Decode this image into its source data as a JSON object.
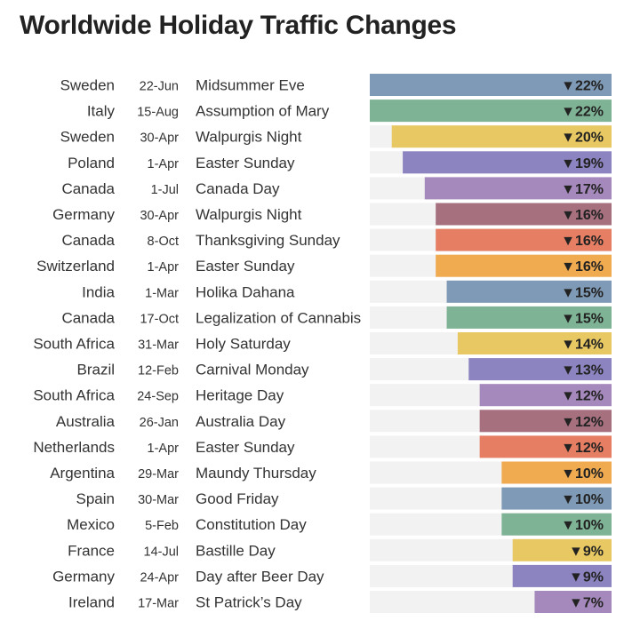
{
  "chart_data": {
    "type": "bar",
    "orientation": "horizontal",
    "title": "Worldwide Holiday Traffic Changes",
    "value_unit": "%",
    "value_direction": "decrease",
    "value_prefix": "▼",
    "xlim": [
      0,
      22
    ],
    "colors": [
      "#7f9ab6",
      "#7fb395",
      "#e8c862",
      "#8c84c0",
      "#a689bc",
      "#a6707f",
      "#e57e62",
      "#f0aa50"
    ],
    "rows": [
      {
        "country": "Sweden",
        "date": "22-Jun",
        "holiday": "Midsummer Eve",
        "value": 22,
        "color": "#7f9ab6"
      },
      {
        "country": "Italy",
        "date": "15-Aug",
        "holiday": "Assumption of Mary",
        "value": 22,
        "color": "#7fb395"
      },
      {
        "country": "Sweden",
        "date": "30-Apr",
        "holiday": "Walpurgis Night",
        "value": 20,
        "color": "#e8c862"
      },
      {
        "country": "Poland",
        "date": "1-Apr",
        "holiday": "Easter Sunday",
        "value": 19,
        "color": "#8c84c0"
      },
      {
        "country": "Canada",
        "date": "1-Jul",
        "holiday": "Canada Day",
        "value": 17,
        "color": "#a689bc"
      },
      {
        "country": "Germany",
        "date": "30-Apr",
        "holiday": "Walpurgis Night",
        "value": 16,
        "color": "#a6707f"
      },
      {
        "country": "Canada",
        "date": "8-Oct",
        "holiday": "Thanksgiving Sunday",
        "value": 16,
        "color": "#e57e62"
      },
      {
        "country": "Switzerland",
        "date": "1-Apr",
        "holiday": "Easter Sunday",
        "value": 16,
        "color": "#f0aa50"
      },
      {
        "country": "India",
        "date": "1-Mar",
        "holiday": "Holika Dahana",
        "value": 15,
        "color": "#7f9ab6"
      },
      {
        "country": "Canada",
        "date": "17-Oct",
        "holiday": "Legalization of Cannabis",
        "value": 15,
        "color": "#7fb395"
      },
      {
        "country": "South Africa",
        "date": "31-Mar",
        "holiday": "Holy Saturday",
        "value": 14,
        "color": "#e8c862"
      },
      {
        "country": "Brazil",
        "date": "12-Feb",
        "holiday": "Carnival Monday",
        "value": 13,
        "color": "#8c84c0"
      },
      {
        "country": "South Africa",
        "date": "24-Sep",
        "holiday": "Heritage Day",
        "value": 12,
        "color": "#a689bc"
      },
      {
        "country": "Australia",
        "date": "26-Jan",
        "holiday": "Australia Day",
        "value": 12,
        "color": "#a6707f"
      },
      {
        "country": "Netherlands",
        "date": "1-Apr",
        "holiday": "Easter Sunday",
        "value": 12,
        "color": "#e57e62"
      },
      {
        "country": "Argentina",
        "date": "29-Mar",
        "holiday": "Maundy Thursday",
        "value": 10,
        "color": "#f0aa50"
      },
      {
        "country": "Spain",
        "date": "30-Mar",
        "holiday": "Good Friday",
        "value": 10,
        "color": "#7f9ab6"
      },
      {
        "country": "Mexico",
        "date": "5-Feb",
        "holiday": "Constitution Day",
        "value": 10,
        "color": "#7fb395"
      },
      {
        "country": "France",
        "date": "14-Jul",
        "holiday": "Bastille Day",
        "value": 9,
        "color": "#e8c862"
      },
      {
        "country": "Germany",
        "date": "24-Apr",
        "holiday": "Day after Beer Day",
        "value": 9,
        "color": "#8c84c0"
      },
      {
        "country": "Ireland",
        "date": "17-Mar",
        "holiday": "St Patrick’s Day",
        "value": 7,
        "color": "#a689bc"
      }
    ]
  }
}
